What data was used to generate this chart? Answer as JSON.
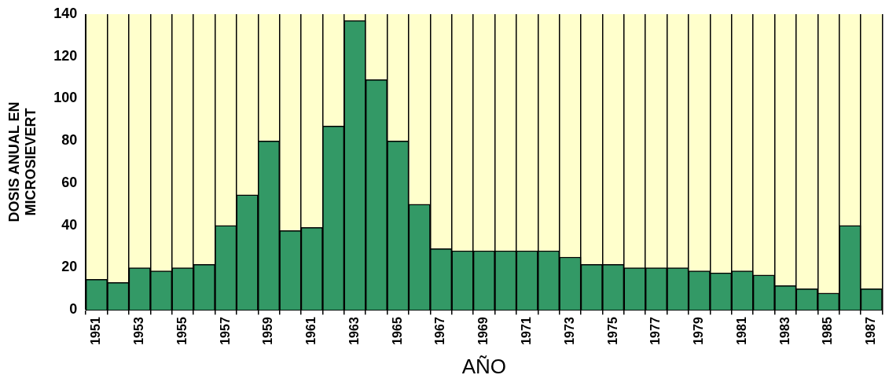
{
  "chart_data": {
    "type": "bar",
    "xlabel": "AÑO",
    "ylabel": "DOSIS ANUAL EN MICROSIEVERT",
    "categories": [
      "1951",
      null,
      "1953",
      null,
      "1955",
      null,
      "1957",
      null,
      "1959",
      null,
      "1961",
      null,
      "1963",
      null,
      "1965",
      null,
      "1967",
      null,
      "1969",
      null,
      "1971",
      null,
      "1973",
      null,
      "1975",
      null,
      "1977",
      null,
      "1979",
      null,
      "1981",
      null,
      "1983",
      null,
      "1985",
      null,
      "1987"
    ],
    "values": [
      14.5,
      13,
      20,
      18.5,
      20,
      21.5,
      40,
      54.5,
      80,
      37.5,
      39,
      87,
      137,
      109,
      80,
      50,
      29,
      28,
      28,
      28,
      28,
      28,
      25,
      21.5,
      21.5,
      20,
      20,
      20,
      18.5,
      17.5,
      18.5,
      16.5,
      11.5,
      10,
      8,
      40,
      10
    ],
    "color": "#339966",
    "ylim": [
      0,
      140
    ],
    "yticks": [
      0,
      20,
      40,
      60,
      80,
      100,
      120,
      140
    ],
    "grid": "x",
    "legend": false
  }
}
